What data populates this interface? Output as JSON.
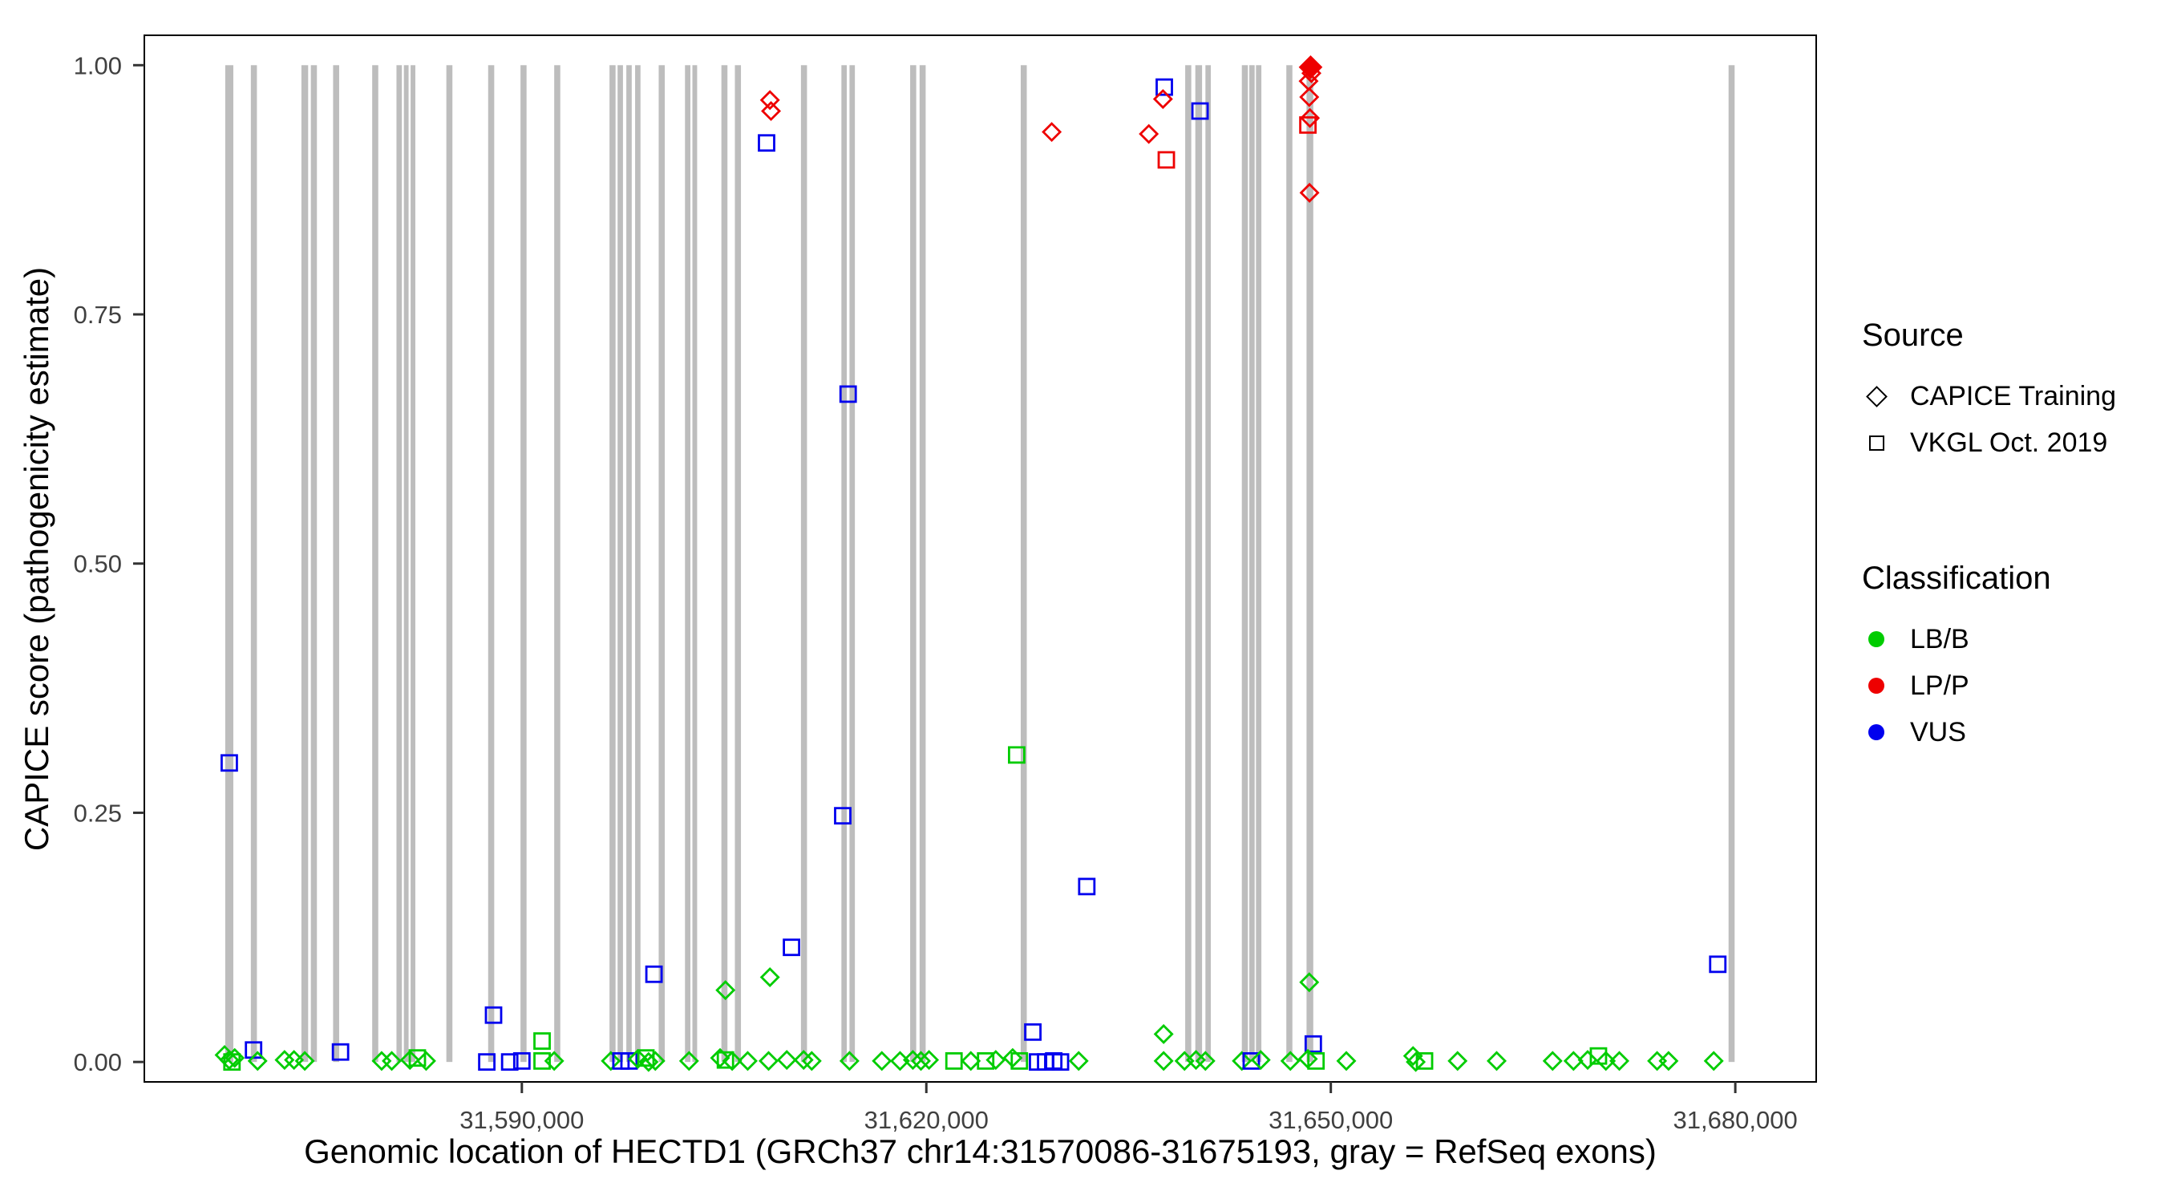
{
  "legend": {
    "source_title": "Source",
    "source_items": [
      {
        "label": "CAPICE Training",
        "marker": "open-diamond"
      },
      {
        "label": "VKGL Oct. 2019",
        "marker": "open-square"
      }
    ],
    "classification_title": "Classification",
    "classification_items": [
      {
        "label": "LB/B",
        "key": "LB",
        "color": "#00CC00"
      },
      {
        "label": "LP/P",
        "key": "LP",
        "color": "#EE0000"
      },
      {
        "label": "VUS",
        "key": "VUS",
        "color": "#0000EE"
      }
    ]
  },
  "chart_data": {
    "type": "scatter",
    "title": "",
    "xlabel": "Genomic location of HECTD1 (GRCh37 chr14:31570086-31675193, gray = RefSeq exons)",
    "ylabel": "CAPICE score (pathogenicity estimate)",
    "xlim": [
      31562000,
      31686000
    ],
    "ylim": [
      -0.02,
      1.03
    ],
    "grid": false,
    "legend_position": "right",
    "x_ticks": [
      {
        "value": 31590000,
        "label": "31,590,000"
      },
      {
        "value": 31620000,
        "label": "31,620,000"
      },
      {
        "value": 31650000,
        "label": "31,650,000"
      },
      {
        "value": 31680000,
        "label": "31,680,000"
      }
    ],
    "y_ticks": [
      {
        "value": 0.0,
        "label": "0.00"
      },
      {
        "value": 0.25,
        "label": "0.25"
      },
      {
        "value": 0.5,
        "label": "0.50"
      },
      {
        "value": 0.75,
        "label": "0.75"
      },
      {
        "value": 1.0,
        "label": "1.00"
      }
    ],
    "colors": {
      "LB": "#00CC00",
      "LP": "#EE0000",
      "VUS": "#0000EE",
      "exon": "#BDBDBD"
    },
    "marker_by_source": {
      "T": "open-diamond (CAPICE Training)",
      "V": "open-square (VKGL Oct. 2019)"
    },
    "exons": [
      [
        31568000,
        31568600
      ],
      [
        31569900,
        31570350
      ],
      [
        31573650,
        31574150
      ],
      [
        31574350,
        31574800
      ],
      [
        31576000,
        31576450
      ],
      [
        31578900,
        31579350
      ],
      [
        31580700,
        31581100
      ],
      [
        31581250,
        31581600
      ],
      [
        31581750,
        31582100
      ],
      [
        31584400,
        31584850
      ],
      [
        31587500,
        31587950
      ],
      [
        31589900,
        31590350
      ],
      [
        31592400,
        31592850
      ],
      [
        31596500,
        31596950
      ],
      [
        31597100,
        31597500
      ],
      [
        31597750,
        31598150
      ],
      [
        31598400,
        31598800
      ],
      [
        31600150,
        31600600
      ],
      [
        31602100,
        31602500
      ],
      [
        31602650,
        31603000
      ],
      [
        31604800,
        31605250
      ],
      [
        31605800,
        31606250
      ],
      [
        31610700,
        31611150
      ],
      [
        31613700,
        31614100
      ],
      [
        31614300,
        31614700
      ],
      [
        31618800,
        31619250
      ],
      [
        31619500,
        31619950
      ],
      [
        31627000,
        31627450
      ],
      [
        31639200,
        31639650
      ],
      [
        31639950,
        31640450
      ],
      [
        31640700,
        31641100
      ],
      [
        31643400,
        31643850
      ],
      [
        31643950,
        31644350
      ],
      [
        31644450,
        31644850
      ],
      [
        31646700,
        31647150
      ],
      [
        31648200,
        31648700
      ],
      [
        31679500,
        31679950
      ]
    ],
    "point_format": [
      "genomic_position",
      "capice_score",
      "source(T=CAPICE Training diamond, V=VKGL Oct. 2019 square)",
      "classification",
      "filled(optional)"
    ],
    "points": [
      [
        31608400,
        0.965,
        "T",
        "LP"
      ],
      [
        31608480,
        0.954,
        "T",
        "LP"
      ],
      [
        31608150,
        0.922,
        "V",
        "VUS"
      ],
      [
        31614200,
        0.67,
        "V",
        "VUS"
      ],
      [
        31629300,
        0.933,
        "T",
        "LP"
      ],
      [
        31636500,
        0.931,
        "T",
        "LP"
      ],
      [
        31637650,
        0.978,
        "V",
        "VUS"
      ],
      [
        31637550,
        0.966,
        "T",
        "LP"
      ],
      [
        31637800,
        0.905,
        "V",
        "LP"
      ],
      [
        31640300,
        0.954,
        "V",
        "VUS"
      ],
      [
        31648500,
        0.998,
        "T",
        "LP",
        1
      ],
      [
        31648560,
        0.992,
        "T",
        "LP"
      ],
      [
        31648350,
        0.984,
        "T",
        "LP"
      ],
      [
        31648400,
        0.968,
        "T",
        "LP"
      ],
      [
        31648450,
        0.947,
        "T",
        "LP"
      ],
      [
        31648300,
        0.94,
        "V",
        "LP"
      ],
      [
        31648420,
        0.872,
        "T",
        "LP"
      ],
      [
        31568300,
        0.3,
        "V",
        "VUS"
      ],
      [
        31613800,
        0.247,
        "V",
        "VUS"
      ],
      [
        31626700,
        0.308,
        "V",
        "LB"
      ],
      [
        31631900,
        0.176,
        "V",
        "VUS"
      ],
      [
        31610000,
        0.115,
        "V",
        "VUS"
      ],
      [
        31678700,
        0.098,
        "V",
        "VUS"
      ],
      [
        31599800,
        0.088,
        "V",
        "VUS"
      ],
      [
        31605100,
        0.072,
        "T",
        "LB"
      ],
      [
        31608400,
        0.085,
        "T",
        "LB"
      ],
      [
        31648400,
        0.08,
        "T",
        "LB"
      ],
      [
        31587900,
        0.047,
        "V",
        "VUS"
      ],
      [
        31637600,
        0.028,
        "T",
        "LB"
      ],
      [
        31627900,
        0.03,
        "V",
        "VUS"
      ],
      [
        31591500,
        0.021,
        "V",
        "LB"
      ],
      [
        31648700,
        0.018,
        "V",
        "VUS"
      ],
      [
        31567950,
        0.007,
        "T",
        "LB"
      ],
      [
        31568300,
        0.002,
        "T",
        "LB"
      ],
      [
        31568500,
        0.0,
        "V",
        "LB"
      ],
      [
        31568700,
        0.004,
        "T",
        "LB"
      ],
      [
        31570100,
        0.012,
        "V",
        "VUS"
      ],
      [
        31570400,
        0.001,
        "T",
        "LB"
      ],
      [
        31572400,
        0.002,
        "T",
        "LB"
      ],
      [
        31573100,
        0.002,
        "T",
        "LB"
      ],
      [
        31573900,
        0.001,
        "T",
        "LB"
      ],
      [
        31576550,
        0.01,
        "V",
        "VUS"
      ],
      [
        31579600,
        0.001,
        "T",
        "LB"
      ],
      [
        31580350,
        0.001,
        "T",
        "LB"
      ],
      [
        31581700,
        0.002,
        "T",
        "LB"
      ],
      [
        31582250,
        0.004,
        "V",
        "LB"
      ],
      [
        31582900,
        0.001,
        "T",
        "LB"
      ],
      [
        31587400,
        0.0,
        "V",
        "VUS"
      ],
      [
        31589100,
        0.0,
        "V",
        "VUS"
      ],
      [
        31590000,
        0.001,
        "V",
        "VUS"
      ],
      [
        31591500,
        0.001,
        "V",
        "LB"
      ],
      [
        31592400,
        0.001,
        "T",
        "LB"
      ],
      [
        31596600,
        0.001,
        "T",
        "LB"
      ],
      [
        31597350,
        0.001,
        "V",
        "VUS"
      ],
      [
        31597950,
        0.001,
        "V",
        "VUS"
      ],
      [
        31598600,
        0.003,
        "T",
        "LB"
      ],
      [
        31599200,
        0.004,
        "V",
        "LB"
      ],
      [
        31599400,
        0.0,
        "T",
        "LB"
      ],
      [
        31599900,
        0.001,
        "T",
        "LB"
      ],
      [
        31602400,
        0.001,
        "T",
        "LB"
      ],
      [
        31604700,
        0.004,
        "T",
        "LB"
      ],
      [
        31605100,
        0.002,
        "V",
        "LB"
      ],
      [
        31605600,
        0.001,
        "T",
        "LB"
      ],
      [
        31606750,
        0.001,
        "T",
        "LB"
      ],
      [
        31608300,
        0.001,
        "T",
        "LB"
      ],
      [
        31609650,
        0.002,
        "T",
        "LB"
      ],
      [
        31610900,
        0.002,
        "T",
        "LB"
      ],
      [
        31611500,
        0.001,
        "T",
        "LB"
      ],
      [
        31614300,
        0.001,
        "T",
        "LB"
      ],
      [
        31616700,
        0.001,
        "T",
        "LB"
      ],
      [
        31618050,
        0.001,
        "T",
        "LB"
      ],
      [
        31619000,
        0.002,
        "T",
        "LB"
      ],
      [
        31619600,
        0.001,
        "T",
        "LB"
      ],
      [
        31620200,
        0.002,
        "T",
        "LB"
      ],
      [
        31622050,
        0.001,
        "V",
        "LB"
      ],
      [
        31623300,
        0.001,
        "T",
        "LB"
      ],
      [
        31624400,
        0.001,
        "V",
        "LB"
      ],
      [
        31625150,
        0.002,
        "T",
        "LB"
      ],
      [
        31626400,
        0.004,
        "T",
        "LB"
      ],
      [
        31626900,
        0.001,
        "V",
        "LB"
      ],
      [
        31628250,
        0.0,
        "V",
        "VUS"
      ],
      [
        31628850,
        0.0,
        "V",
        "VUS"
      ],
      [
        31629450,
        0.001,
        "V",
        "VUS"
      ],
      [
        31629950,
        0.0,
        "V",
        "VUS"
      ],
      [
        31631300,
        0.001,
        "T",
        "LB"
      ],
      [
        31637600,
        0.001,
        "T",
        "LB"
      ],
      [
        31639150,
        0.001,
        "T",
        "LB"
      ],
      [
        31640000,
        0.002,
        "T",
        "LB"
      ],
      [
        31640700,
        0.001,
        "T",
        "LB"
      ],
      [
        31643400,
        0.001,
        "T",
        "LB"
      ],
      [
        31644100,
        0.001,
        "V",
        "VUS"
      ],
      [
        31644800,
        0.002,
        "T",
        "LB"
      ],
      [
        31647000,
        0.001,
        "T",
        "LB"
      ],
      [
        31648300,
        0.003,
        "T",
        "LB"
      ],
      [
        31648900,
        0.001,
        "V",
        "LB"
      ],
      [
        31651150,
        0.001,
        "T",
        "LB"
      ],
      [
        31656100,
        0.006,
        "T",
        "LB"
      ],
      [
        31656300,
        0.0,
        "T",
        "LB"
      ],
      [
        31656950,
        0.001,
        "V",
        "LB"
      ],
      [
        31659400,
        0.001,
        "T",
        "LB"
      ],
      [
        31662300,
        0.001,
        "T",
        "LB"
      ],
      [
        31666450,
        0.001,
        "T",
        "LB"
      ],
      [
        31668000,
        0.001,
        "T",
        "LB"
      ],
      [
        31669050,
        0.002,
        "T",
        "LB"
      ],
      [
        31669850,
        0.006,
        "V",
        "LB"
      ],
      [
        31670400,
        0.001,
        "T",
        "LB"
      ],
      [
        31671400,
        0.001,
        "T",
        "LB"
      ],
      [
        31674200,
        0.001,
        "T",
        "LB"
      ],
      [
        31675050,
        0.001,
        "T",
        "LB"
      ],
      [
        31678400,
        0.001,
        "T",
        "LB"
      ]
    ]
  }
}
